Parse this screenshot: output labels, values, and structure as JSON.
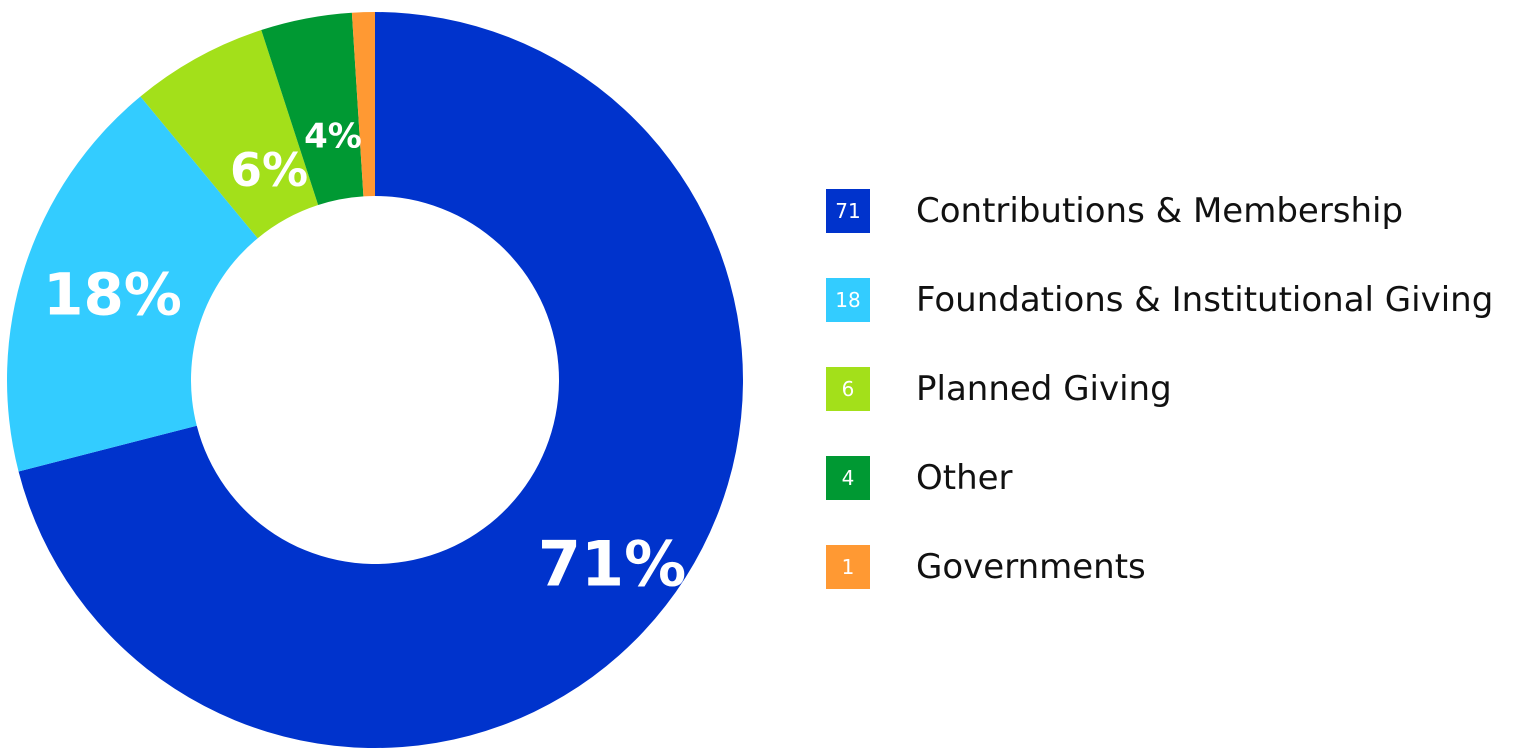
{
  "chart_data": {
    "type": "pie",
    "variant": "donut",
    "categories": [
      "Contributions & Membership",
      "Foundations & Institutional Giving",
      "Planned Giving",
      "Other",
      "Governments"
    ],
    "values": [
      71,
      18,
      6,
      4,
      1
    ],
    "slice_labels": [
      "71%",
      "18%",
      "6%",
      "4%",
      ""
    ],
    "legend_values": [
      "71",
      "18",
      "6",
      "4",
      "1"
    ],
    "colors": [
      "#0033CC",
      "#33CCFF",
      "#A3E01A",
      "#009933",
      "#FF9933"
    ],
    "start_angle_deg": 0,
    "direction": "clockwise",
    "legend_position": "right"
  }
}
